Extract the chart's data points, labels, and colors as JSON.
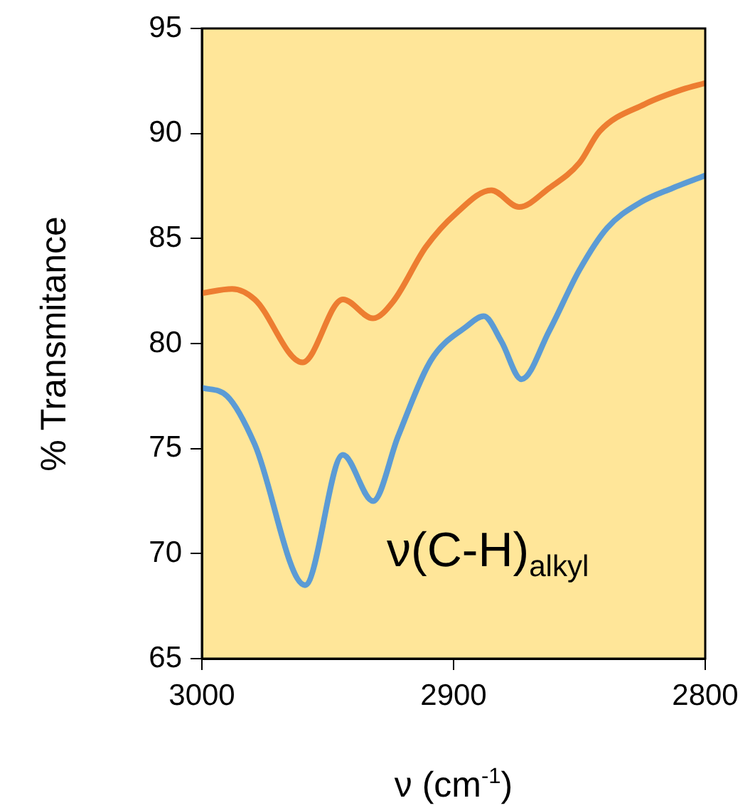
{
  "chart_data": {
    "type": "line",
    "xlabel": "ν (cm$^{-1}$)",
    "ylabel": "% Transmitance",
    "xlim": [
      3000,
      2800
    ],
    "xticks": [
      3000,
      2900,
      2800
    ],
    "ylim": [
      65,
      95
    ],
    "yticks": [
      65,
      70,
      75,
      80,
      85,
      90,
      95
    ],
    "grid": false,
    "legend": false,
    "marker": "none",
    "line_style": "solid",
    "annotations": [
      "ν(C-H)$_{alkyl}$"
    ],
    "series": [
      {
        "color": "#ed7d31",
        "x": [
          3000,
          2988,
          2979,
          2960,
          2944,
          2932,
          2924,
          2911,
          2899,
          2885,
          2874,
          2862,
          2850,
          2842,
          2824,
          2809,
          2800
        ],
        "values": [
          82.4,
          82.6,
          82.1,
          79.1,
          82.1,
          81.2,
          82.0,
          84.6,
          86.2,
          87.3,
          86.5,
          87.4,
          88.6,
          90.1,
          91.4,
          92.1,
          92.4
        ]
      },
      {
        "color": "#5b9bd5",
        "x": [
          3000,
          2990,
          2979,
          2959,
          2944,
          2932,
          2922,
          2909,
          2895,
          2888,
          2881,
          2873,
          2862,
          2850,
          2839,
          2826,
          2813,
          2800
        ],
        "values": [
          77.9,
          77.5,
          75.2,
          68.5,
          74.7,
          72.5,
          75.6,
          79.2,
          80.8,
          81.3,
          80.1,
          78.3,
          80.6,
          83.5,
          85.5,
          86.7,
          87.4,
          88.0
        ]
      }
    ]
  }
}
